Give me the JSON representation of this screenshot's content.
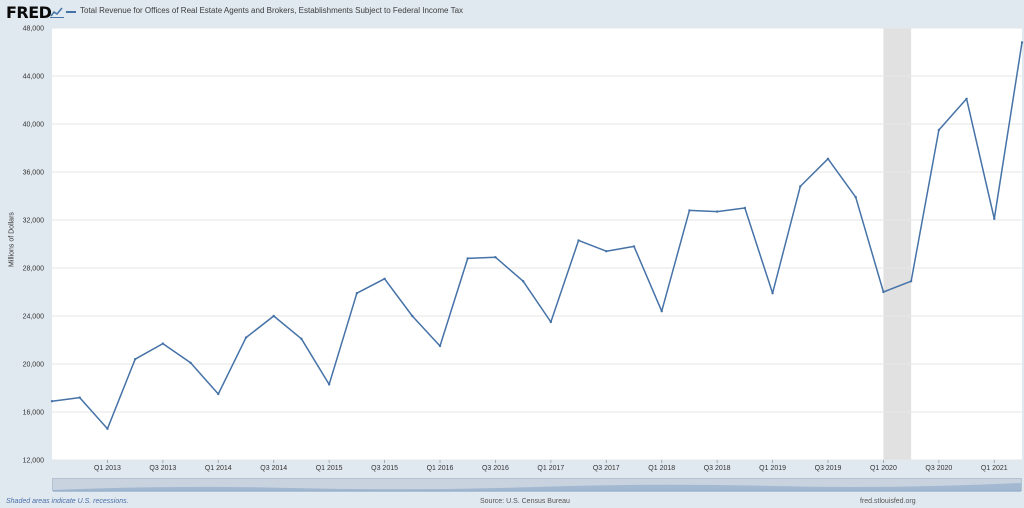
{
  "header": {
    "logo_text": "FRED",
    "title": "Total Revenue for Offices of Real Estate Agents and Brokers, Establishments Subject to Federal Income Tax"
  },
  "footer": {
    "recession_note": "Shaded areas indicate U.S. recessions.",
    "source": "Source: U.S. Census Bureau",
    "site": "fred.stlouisfed.org"
  },
  "colors": {
    "line": "#4572a7",
    "recession": "#e1e1e1",
    "grid": "#e6e6e6"
  },
  "chart_data": {
    "type": "line",
    "title": "Total Revenue for Offices of Real Estate Agents and Brokers, Establishments Subject to Federal Income Tax",
    "ylabel": "Millions of Dollars",
    "ylim": [
      12000,
      48000
    ],
    "yticks": [
      "12,000",
      "16,000",
      "20,000",
      "24,000",
      "28,000",
      "32,000",
      "36,000",
      "40,000",
      "44,000",
      "48,000"
    ],
    "xticks": [
      "Q1 2013",
      "Q3 2013",
      "Q1 2014",
      "Q3 2014",
      "Q1 2015",
      "Q3 2015",
      "Q1 2016",
      "Q3 2016",
      "Q1 2017",
      "Q3 2017",
      "Q1 2018",
      "Q3 2018",
      "Q1 2019",
      "Q3 2019",
      "Q1 2020",
      "Q3 2020",
      "Q1 2021"
    ],
    "recession": [
      "Q1 2020",
      "Q2 2020"
    ],
    "grid": true,
    "series": [
      {
        "x": [
          "Q3 2012",
          "Q4 2012",
          "Q1 2013",
          "Q2 2013",
          "Q3 2013",
          "Q4 2013",
          "Q1 2014",
          "Q2 2014",
          "Q3 2014",
          "Q4 2014",
          "Q1 2015",
          "Q2 2015",
          "Q3 2015",
          "Q4 2015",
          "Q1 2016",
          "Q2 2016",
          "Q3 2016",
          "Q4 2016",
          "Q1 2017",
          "Q2 2017",
          "Q3 2017",
          "Q4 2017",
          "Q1 2018",
          "Q2 2018",
          "Q3 2018",
          "Q4 2018",
          "Q1 2019",
          "Q2 2019",
          "Q3 2019",
          "Q4 2019",
          "Q1 2020",
          "Q2 2020",
          "Q3 2020",
          "Q4 2020",
          "Q1 2021",
          "Q2 2021"
        ],
        "values": [
          16900,
          17200,
          14600,
          20400,
          21700,
          20100,
          17500,
          22200,
          24000,
          22100,
          18300,
          25900,
          27100,
          24000,
          21500,
          28800,
          28900,
          26900,
          23500,
          30300,
          29400,
          29800,
          24400,
          32800,
          32700,
          33000,
          25900,
          34800,
          37100,
          33900,
          26000,
          26900,
          39500,
          42100,
          32100,
          46800
        ]
      }
    ]
  }
}
